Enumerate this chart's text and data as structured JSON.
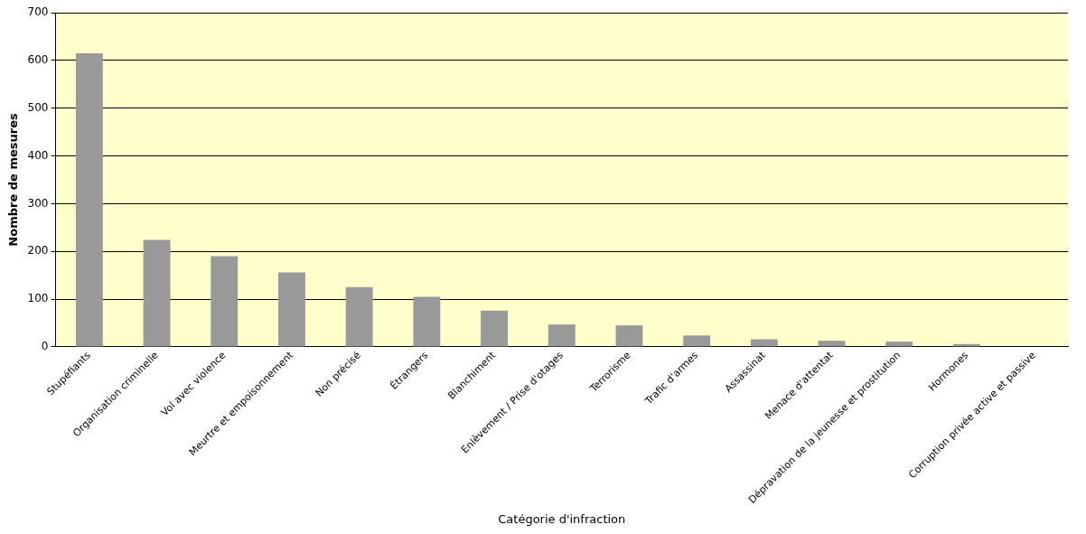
{
  "chart_data": {
    "type": "bar",
    "xlabel": "Catégorie d'infraction",
    "ylabel": "Nombre de mesures",
    "categories": [
      "Stupéfiants",
      "Organisation criminelle",
      "Vol avec violence",
      "Meurtre et empoisonnement",
      "Non précisé",
      "Étrangers",
      "Blanchiment",
      "Enlèvement / Prise d'otages",
      "Terrorisme",
      "Trafic d'armes",
      "Assassinat",
      "Menace d'attentat",
      "Dépravation de la jeunesse et prostitution",
      "Hormones",
      "Corruption privée active et passive"
    ],
    "values": [
      615,
      224,
      190,
      156,
      125,
      105,
      76,
      47,
      45,
      24,
      16,
      13,
      11,
      6,
      0
    ],
    "color": "#999999",
    "ylim": [
      0,
      700
    ],
    "yticks": [
      0,
      100,
      200,
      300,
      400,
      500,
      600,
      700
    ],
    "grid": "y",
    "legend": false
  }
}
